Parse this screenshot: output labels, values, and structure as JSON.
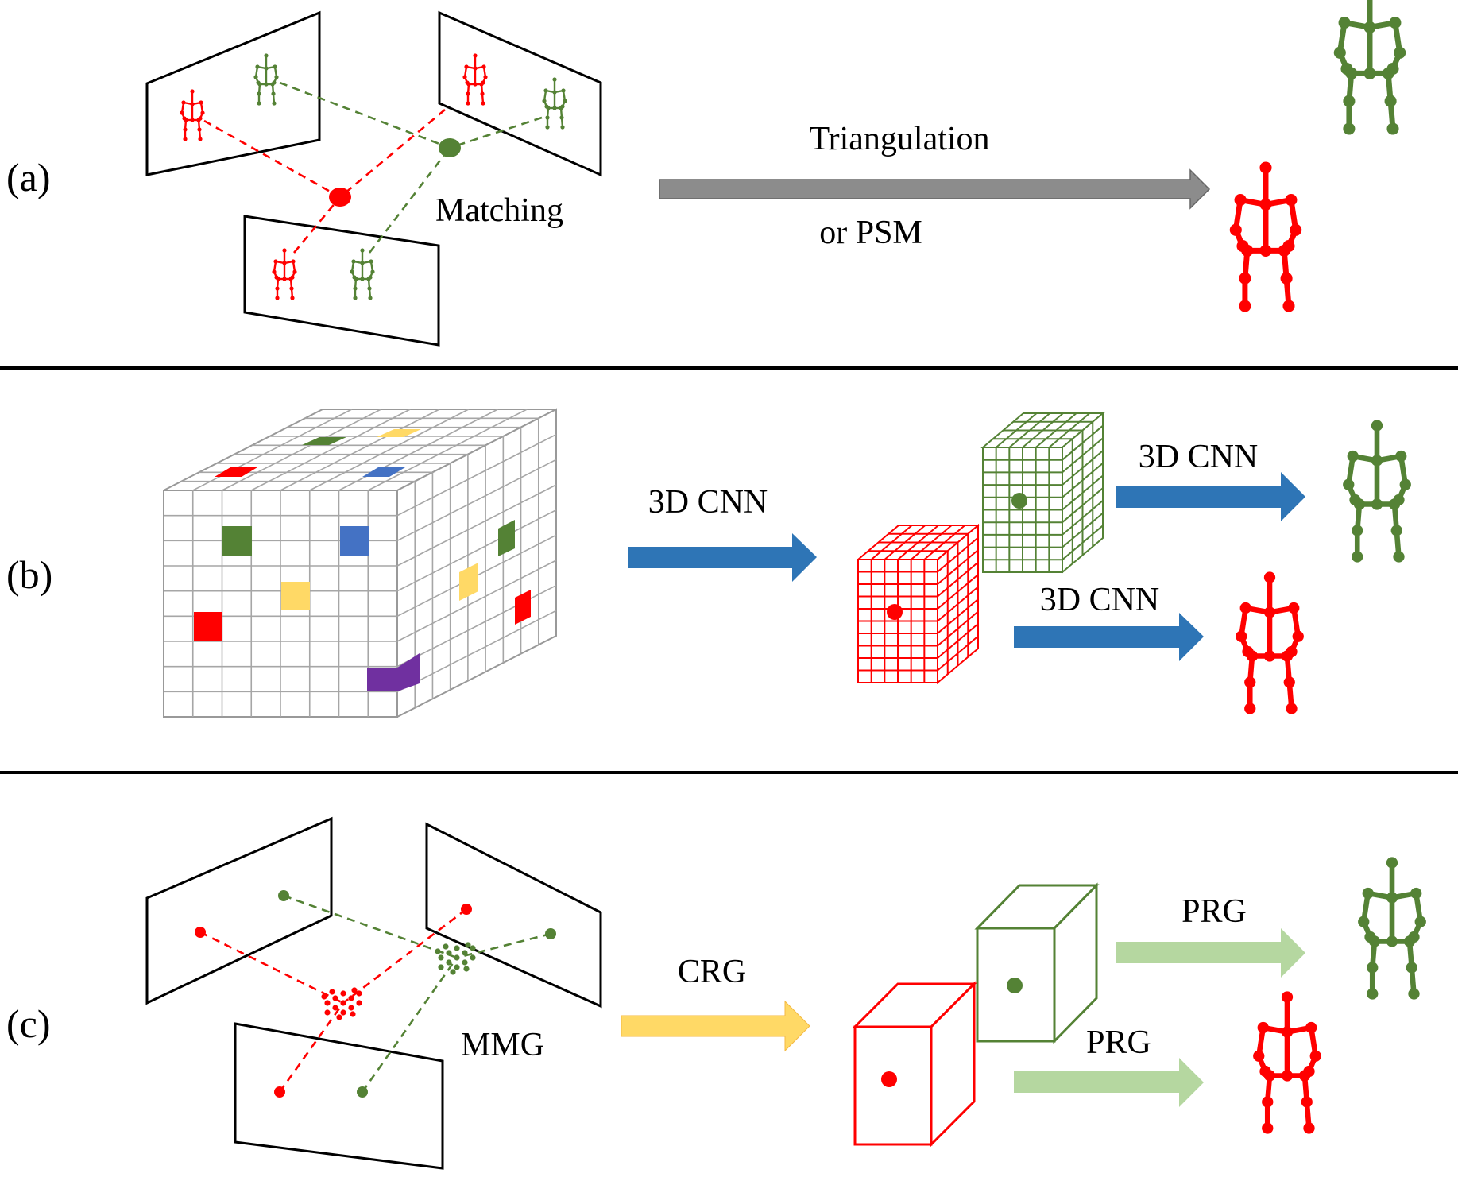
{
  "colors": {
    "red": "#ff0000",
    "green": "#548235",
    "blue": "#2e75b6",
    "gray_arrow": "#8c8c8c",
    "yellow_arrow": "#ffd966",
    "light_green_arrow": "#b5d7a0",
    "yellow_cell": "#ffd966",
    "purple_cell": "#7030a0",
    "blue_cell": "#4472c4"
  },
  "panels": {
    "a": {
      "label": "(a)",
      "matching_label": "Matching",
      "arrow_label_top": "Triangulation",
      "arrow_label_bottom": "or PSM"
    },
    "b": {
      "label": "(b)",
      "arrow_main_label": "3D CNN",
      "arrow_green_label": "3D CNN",
      "arrow_red_label": "3D CNN"
    },
    "c": {
      "label": "(c)",
      "matching_label": "MMG",
      "arrow_main_label": "CRG",
      "arrow_green_label": "PRG",
      "arrow_red_label": "PRG"
    }
  }
}
